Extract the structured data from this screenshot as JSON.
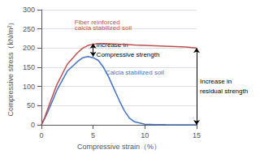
{
  "chart_data": {
    "type": "line",
    "xlabel": "Compressive strain（%）",
    "ylabel": "Compressive stress（kN/m²）",
    "xlim": [
      0,
      15
    ],
    "ylim": [
      0,
      300
    ],
    "xticks": [
      0,
      5,
      10,
      15
    ],
    "yticks": [
      0,
      50,
      100,
      150,
      200,
      250,
      300
    ],
    "grid": true,
    "series": [
      {
        "color": "#4472C4",
        "x": [
          0,
          0.3,
          0.8,
          1.5,
          2.5,
          3.5,
          4.0,
          4.5,
          5.0,
          5.5,
          6.0,
          6.5,
          7.0,
          7.5,
          8.0,
          8.5,
          9.0,
          10.0,
          11.0,
          12.0,
          15.0
        ],
        "values": [
          0,
          15,
          45,
          90,
          140,
          165,
          175,
          178,
          175,
          168,
          150,
          125,
          95,
          65,
          38,
          18,
          8,
          2,
          1,
          0.5,
          0
        ]
      },
      {
        "color": "#C0504D",
        "x": [
          0,
          0.3,
          0.8,
          1.5,
          2.5,
          3.5,
          4.0,
          4.5,
          5.0,
          5.5,
          6.0,
          7.0,
          8.0,
          9.0,
          10.0,
          11.0,
          12.0,
          13.0,
          14.0,
          15.0
        ],
        "values": [
          0,
          18,
          55,
          105,
          158,
          188,
          200,
          207,
          210,
          212,
          212,
          211,
          210,
          208,
          207,
          206,
          205,
          204,
          203,
          200
        ]
      }
    ],
    "annotations": [
      {
        "text": "Fiber reinforced",
        "x": 3.2,
        "y": 258,
        "color": "#C0504D"
      },
      {
        "text": "calcia stabilized soil",
        "x": 3.2,
        "y": 244,
        "color": "#C0504D"
      },
      {
        "text": "Calcia stabilized soil",
        "x": 6.2,
        "y": 128,
        "color": "#4472C4"
      }
    ],
    "arrows": [
      {
        "x": 5.0,
        "y_bottom": 178,
        "y_top": 212,
        "color": "#000000",
        "text": [
          "Increase in",
          "Compressive strength"
        ]
      },
      {
        "x": 15.0,
        "y_bottom": 0,
        "y_top": 200,
        "color": "#000000",
        "text": [
          "Increase in",
          "residual strength"
        ]
      }
    ]
  }
}
